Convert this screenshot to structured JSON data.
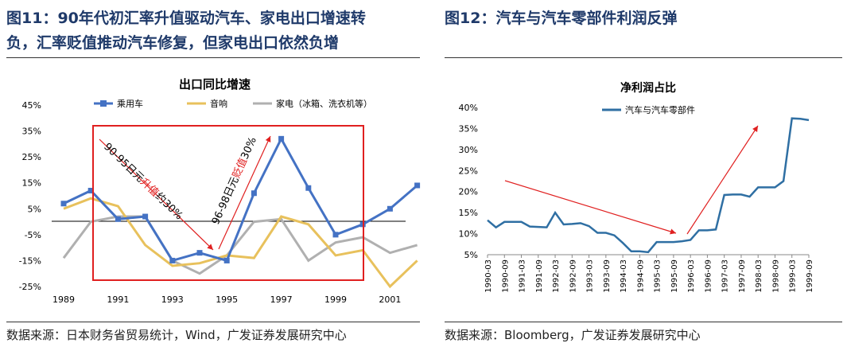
{
  "left": {
    "title_line1": "图11：90年代初汇率升值驱动汽车、家电出口增速转",
    "title_line2": "负，汇率贬值推动汽车修复，但家电出口依然负增",
    "source": "数据来源：日本财务省贸易统计，Wind，广发证券发展研究中心",
    "annotation1_prefix": "90-95日元",
    "annotation1_highlight": "升值",
    "annotation1_suffix": "约30%",
    "annotation2_prefix": "96-98日元",
    "annotation2_highlight": "贬值",
    "annotation2_suffix": "30%"
  },
  "right": {
    "title": "图12：汽车与汽车零部件利润反弹",
    "source": "数据来源：Bloomberg，广发证券发展研究中心"
  },
  "colors": {
    "blue": "#4472c4",
    "yellow": "#e8c15c",
    "gray": "#b0b0b0",
    "line_blue": "#2f6fa3",
    "red": "#e02020"
  },
  "chart_data": [
    {
      "type": "line",
      "title": "出口同比增速",
      "x": [
        1989,
        1990,
        1991,
        1992,
        1993,
        1994,
        1995,
        1996,
        1997,
        1998,
        1999,
        2000,
        2001,
        2002
      ],
      "x_tick_labels": [
        "1989",
        "1991",
        "1993",
        "1995",
        "1997",
        "1999",
        "2001"
      ],
      "y_tick_labels": [
        "45%",
        "35%",
        "25%",
        "15%",
        "5%",
        "-5%",
        "-15%",
        "-25%"
      ],
      "ylim": [
        -25,
        45
      ],
      "series": [
        {
          "name": "乘用车",
          "values": [
            7,
            12,
            1,
            2,
            -15,
            -12,
            -15,
            11,
            32,
            13,
            -5,
            -1,
            5,
            14
          ]
        },
        {
          "name": "音响",
          "values": [
            5,
            9,
            6,
            -9,
            -17,
            -16,
            -13,
            -14,
            2,
            -1,
            -13,
            -11,
            -25,
            -15
          ]
        },
        {
          "name": "家电（冰箱、洗衣机等）",
          "values": [
            -14,
            0,
            2,
            2,
            -15,
            -20,
            -13,
            0,
            1,
            -15,
            -8,
            -6,
            -12,
            -9
          ]
        }
      ]
    },
    {
      "type": "line",
      "title": "净利润占比",
      "series": [
        {
          "name": "汽车与汽车零部件",
          "values": [
            13.2,
            11.5,
            12.8,
            12.8,
            12.8,
            11.7,
            11.6,
            11.5,
            15.0,
            12.2,
            12.3,
            12.5,
            11.8,
            10.2,
            10.2,
            9.6,
            7.8,
            5.8,
            5.8,
            5.6,
            8.0,
            8.0,
            8.0,
            8.2,
            8.5,
            10.8,
            10.8,
            11.0,
            19.2,
            19.3,
            19.3,
            18.8,
            21.0,
            21.0,
            21.0,
            22.5,
            37.4,
            37.3,
            37.0
          ]
        }
      ],
      "x_tick_labels": [
        "1990-03",
        "1990-09",
        "1991-03",
        "1991-09",
        "1992-03",
        "1992-09",
        "1993-03",
        "1993-09",
        "1994-03",
        "1994-09",
        "1995-03",
        "1995-09",
        "1996-03",
        "1996-09",
        "1997-03",
        "1997-09",
        "1998-03",
        "1998-09",
        "1999-03",
        "1999-09"
      ],
      "y_tick_labels": [
        "40%",
        "35%",
        "30%",
        "25%",
        "20%",
        "15%",
        "10%",
        "5%"
      ],
      "ylim": [
        5,
        40
      ]
    }
  ]
}
